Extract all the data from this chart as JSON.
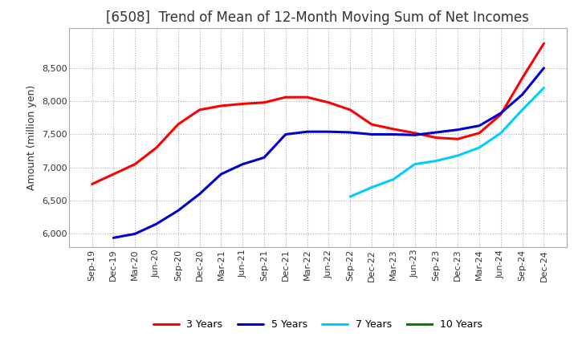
{
  "title": "[6508]  Trend of Mean of 12-Month Moving Sum of Net Incomes",
  "ylabel": "Amount (million yen)",
  "ylim": [
    5800,
    9100
  ],
  "yticks": [
    6000,
    6500,
    7000,
    7500,
    8000,
    8500
  ],
  "x_labels": [
    "Sep-19",
    "Dec-19",
    "Mar-20",
    "Jun-20",
    "Sep-20",
    "Dec-20",
    "Mar-21",
    "Jun-21",
    "Sep-21",
    "Dec-21",
    "Mar-22",
    "Jun-22",
    "Sep-22",
    "Dec-22",
    "Mar-23",
    "Jun-23",
    "Sep-23",
    "Dec-23",
    "Mar-24",
    "Jun-24",
    "Sep-24",
    "Dec-24"
  ],
  "series": {
    "3 Years": {
      "color": "#ff0000",
      "values": [
        6750,
        6900,
        7050,
        7300,
        7650,
        7870,
        7930,
        7960,
        7980,
        8060,
        8060,
        7980,
        7870,
        7650,
        7580,
        7520,
        7450,
        7430,
        7520,
        7800,
        8350,
        8870
      ]
    },
    "5 Years": {
      "color": "#0000cc",
      "values": [
        null,
        5940,
        6000,
        6150,
        6350,
        6600,
        6900,
        7050,
        7150,
        7500,
        7540,
        7540,
        7530,
        7500,
        7500,
        7490,
        7530,
        7570,
        7630,
        7820,
        8100,
        8500
      ]
    },
    "7 Years": {
      "color": "#00ccff",
      "values": [
        null,
        null,
        null,
        null,
        null,
        null,
        null,
        null,
        null,
        null,
        null,
        null,
        6560,
        6700,
        6820,
        7050,
        7100,
        7180,
        7300,
        7520,
        7870,
        8200
      ]
    },
    "10 Years": {
      "color": "#008000",
      "values": [
        null,
        null,
        null,
        null,
        null,
        null,
        null,
        null,
        null,
        null,
        null,
        null,
        null,
        null,
        null,
        null,
        null,
        null,
        null,
        null,
        null,
        null
      ]
    }
  },
  "background_color": "#ffffff",
  "grid_color": "#aaaaaa",
  "title_fontsize": 12,
  "axis_fontsize": 9,
  "tick_fontsize": 8,
  "legend_fontsize": 9
}
